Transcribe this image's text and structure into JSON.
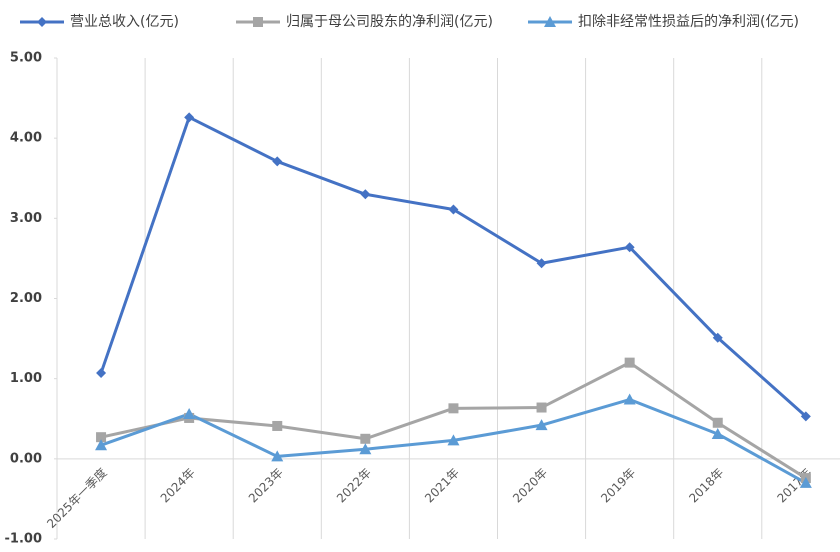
{
  "chart_data": {
    "type": "line",
    "categories": [
      "2025年一季度",
      "2024年",
      "2023年",
      "2022年",
      "2021年",
      "2020年",
      "2019年",
      "2018年",
      "2017年"
    ],
    "series": [
      {
        "name": "营业总收入(亿元)",
        "color": "#4472c4",
        "marker": "diamond",
        "values": [
          1.07,
          4.26,
          3.71,
          3.3,
          3.11,
          2.44,
          2.64,
          1.51,
          0.53
        ]
      },
      {
        "name": "归属于母公司股东的净利润(亿元)",
        "color": "#a5a5a5",
        "marker": "square",
        "values": [
          0.27,
          0.51,
          0.41,
          0.25,
          0.63,
          0.64,
          1.2,
          0.45,
          -0.24
        ]
      },
      {
        "name": "扣除非经常性损益后的净利润(亿元)",
        "color": "#5b9bd5",
        "marker": "triangle",
        "values": [
          0.17,
          0.56,
          0.03,
          0.12,
          0.23,
          0.42,
          0.74,
          0.31,
          -0.3
        ]
      }
    ],
    "ylim": [
      -1,
      5
    ],
    "yticks": [
      {
        "value": 5,
        "label": "5.00"
      },
      {
        "value": 4,
        "label": "4.00"
      },
      {
        "value": 3,
        "label": "3.00"
      },
      {
        "value": 2,
        "label": "2.00"
      },
      {
        "value": 1,
        "label": "1.00"
      },
      {
        "value": 0,
        "label": "0.00"
      },
      {
        "value": -1,
        "label": "-1.00"
      }
    ],
    "legend": "top"
  }
}
